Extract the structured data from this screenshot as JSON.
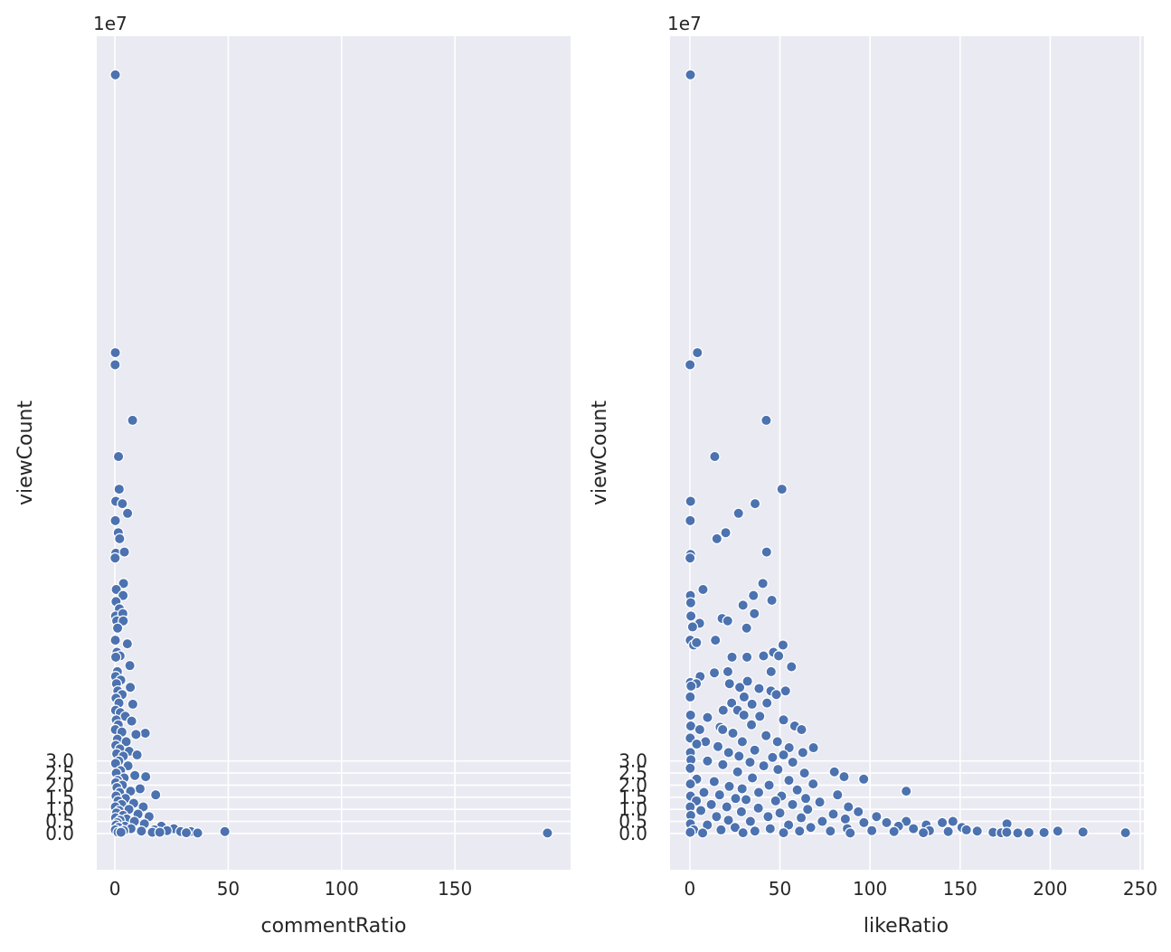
{
  "chart_data": [
    {
      "type": "scatter",
      "xlabel": "commentRatio",
      "ylabel": "viewCount",
      "y_offset_text": "1e7",
      "xlim": [
        -8,
        201
      ],
      "ylim": [
        -1.5,
        33.0
      ],
      "y_unit_scale": 10000000,
      "xticks": [
        0,
        50,
        100,
        150
      ],
      "yticks": [
        0.0,
        0.5,
        1.0,
        1.5,
        2.0,
        2.5,
        3.0
      ],
      "xtick_labels": [
        "0",
        "50",
        "100",
        "150"
      ],
      "ytick_labels": [
        "0.0",
        "0.5",
        "1.0",
        "1.5",
        "2.0",
        "2.5",
        "3.0"
      ],
      "grid": true,
      "points": [
        [
          0.2,
          31.4
        ],
        [
          0.2,
          19.9
        ],
        [
          0.1,
          19.4
        ],
        [
          7.8,
          17.1
        ],
        [
          1.6,
          15.6
        ],
        [
          1.9,
          14.25
        ],
        [
          0.4,
          13.75
        ],
        [
          3.3,
          13.65
        ],
        [
          5.6,
          13.25
        ],
        [
          0.2,
          12.95
        ],
        [
          1.5,
          12.45
        ],
        [
          2.1,
          12.2
        ],
        [
          0.4,
          11.6
        ],
        [
          4.2,
          11.65
        ],
        [
          0.1,
          11.4
        ],
        [
          3.8,
          10.35
        ],
        [
          0.6,
          10.1
        ],
        [
          3.6,
          9.85
        ],
        [
          0.5,
          9.6
        ],
        [
          2.0,
          9.3
        ],
        [
          0.3,
          9.0
        ],
        [
          3.5,
          9.1
        ],
        [
          0.8,
          8.8
        ],
        [
          3.7,
          8.8
        ],
        [
          1.2,
          8.5
        ],
        [
          0.2,
          8.0
        ],
        [
          5.5,
          7.85
        ],
        [
          0.9,
          7.5
        ],
        [
          2.3,
          7.35
        ],
        [
          0.4,
          7.3
        ],
        [
          6.6,
          6.95
        ],
        [
          1.1,
          6.7
        ],
        [
          0.3,
          6.5
        ],
        [
          2.6,
          6.35
        ],
        [
          0.7,
          6.2
        ],
        [
          6.8,
          6.05
        ],
        [
          1.3,
          5.9
        ],
        [
          3.2,
          5.75
        ],
        [
          0.5,
          5.6
        ],
        [
          1.8,
          5.4
        ],
        [
          7.9,
          5.35
        ],
        [
          0.3,
          5.1
        ],
        [
          2.4,
          5.0
        ],
        [
          4.6,
          4.85
        ],
        [
          0.6,
          4.7
        ],
        [
          7.4,
          4.65
        ],
        [
          1.5,
          4.5
        ],
        [
          0.2,
          4.3
        ],
        [
          3.1,
          4.2
        ],
        [
          13.4,
          4.15
        ],
        [
          9.3,
          4.1
        ],
        [
          1.1,
          3.9
        ],
        [
          5.0,
          3.8
        ],
        [
          0.4,
          3.65
        ],
        [
          2.2,
          3.5
        ],
        [
          6.3,
          3.4
        ],
        [
          0.8,
          3.3
        ],
        [
          9.8,
          3.25
        ],
        [
          3.7,
          3.2
        ],
        [
          1.7,
          3.0
        ],
        [
          0.3,
          2.9
        ],
        [
          5.8,
          2.8
        ],
        [
          2.5,
          2.6
        ],
        [
          0.6,
          2.5
        ],
        [
          8.8,
          2.4
        ],
        [
          13.6,
          2.35
        ],
        [
          4.1,
          2.3
        ],
        [
          1.2,
          2.2
        ],
        [
          0.4,
          2.1
        ],
        [
          3.3,
          2.0
        ],
        [
          0.9,
          1.9
        ],
        [
          11.1,
          1.85
        ],
        [
          6.9,
          1.75
        ],
        [
          2.1,
          1.7
        ],
        [
          18.0,
          1.6
        ],
        [
          0.5,
          1.55
        ],
        [
          4.7,
          1.45
        ],
        [
          1.4,
          1.35
        ],
        [
          8.3,
          1.25
        ],
        [
          3.0,
          1.2
        ],
        [
          0.2,
          1.1
        ],
        [
          12.5,
          1.1
        ],
        [
          6.2,
          1.0
        ],
        [
          1.9,
          0.95
        ],
        [
          0.7,
          0.85
        ],
        [
          10.2,
          0.8
        ],
        [
          3.6,
          0.75
        ],
        [
          15.1,
          0.7
        ],
        [
          0.3,
          0.65
        ],
        [
          5.2,
          0.6
        ],
        [
          2.3,
          0.55
        ],
        [
          8.6,
          0.5
        ],
        [
          1.1,
          0.45
        ],
        [
          13.0,
          0.4
        ],
        [
          0.5,
          0.35
        ],
        [
          4.4,
          0.3
        ],
        [
          20.5,
          0.3
        ],
        [
          1.6,
          0.25
        ],
        [
          7.1,
          0.2
        ],
        [
          0.2,
          0.15
        ],
        [
          17.4,
          0.15
        ],
        [
          26.0,
          0.2
        ],
        [
          3.9,
          0.12
        ],
        [
          11.7,
          0.1
        ],
        [
          23.0,
          0.12
        ],
        [
          29.0,
          0.08
        ],
        [
          33.5,
          0.08
        ],
        [
          36.5,
          0.02
        ],
        [
          1.4,
          0.05
        ],
        [
          2.7,
          0.05
        ],
        [
          16.5,
          0.05
        ],
        [
          19.8,
          0.05
        ],
        [
          31.5,
          0.03
        ],
        [
          48.5,
          0.08
        ],
        [
          190.8,
          0.02
        ]
      ]
    },
    {
      "type": "scatter",
      "xlabel": "likeRatio",
      "ylabel": "viewCount",
      "y_offset_text": "1e7",
      "xlim": [
        -11,
        252
      ],
      "ylim": [
        -1.5,
        33.0
      ],
      "y_unit_scale": 10000000,
      "xticks": [
        0,
        50,
        100,
        150,
        200,
        250
      ],
      "yticks": [
        0.0,
        0.5,
        1.0,
        1.5,
        2.0,
        2.5,
        3.0
      ],
      "xtick_labels": [
        "0",
        "50",
        "100",
        "150",
        "200",
        "250"
      ],
      "ytick_labels": [
        "0.0",
        "0.5",
        "1.0",
        "1.5",
        "2.0",
        "2.5",
        "3.0"
      ],
      "grid": true,
      "points": [
        [
          0.3,
          31.4
        ],
        [
          4.2,
          19.9
        ],
        [
          0.1,
          19.4
        ],
        [
          42.4,
          17.1
        ],
        [
          13.8,
          15.6
        ],
        [
          51.1,
          14.25
        ],
        [
          0.4,
          13.75
        ],
        [
          36.2,
          13.65
        ],
        [
          27.0,
          13.25
        ],
        [
          0.2,
          12.95
        ],
        [
          19.9,
          12.45
        ],
        [
          15.0,
          12.2
        ],
        [
          42.6,
          11.65
        ],
        [
          0.4,
          11.55
        ],
        [
          0.1,
          11.4
        ],
        [
          40.5,
          10.35
        ],
        [
          7.3,
          10.1
        ],
        [
          35.3,
          9.85
        ],
        [
          0.3,
          9.85
        ],
        [
          45.5,
          9.65
        ],
        [
          0.5,
          9.55
        ],
        [
          29.5,
          9.45
        ],
        [
          35.8,
          9.1
        ],
        [
          0.6,
          9.0
        ],
        [
          17.9,
          8.9
        ],
        [
          21.0,
          8.8
        ],
        [
          5.4,
          8.7
        ],
        [
          1.5,
          8.55
        ],
        [
          31.5,
          8.5
        ],
        [
          14.2,
          8.0
        ],
        [
          0.2,
          8.0
        ],
        [
          2.1,
          7.8
        ],
        [
          3.7,
          7.9
        ],
        [
          51.7,
          7.8
        ],
        [
          46.4,
          7.5
        ],
        [
          40.9,
          7.35
        ],
        [
          49.3,
          7.35
        ],
        [
          23.4,
          7.3
        ],
        [
          31.7,
          7.3
        ],
        [
          56.4,
          6.9
        ],
        [
          45.1,
          6.7
        ],
        [
          13.6,
          6.65
        ],
        [
          21.1,
          6.7
        ],
        [
          5.7,
          6.5
        ],
        [
          0.3,
          6.25
        ],
        [
          3.6,
          6.2
        ],
        [
          0.7,
          6.1
        ],
        [
          22.0,
          6.2
        ],
        [
          27.7,
          6.05
        ],
        [
          32.0,
          6.3
        ],
        [
          38.4,
          6.0
        ],
        [
          45.0,
          5.9
        ],
        [
          53.1,
          5.9
        ],
        [
          0.2,
          5.65
        ],
        [
          30.1,
          5.65
        ],
        [
          48.0,
          5.75
        ],
        [
          23.2,
          5.4
        ],
        [
          34.5,
          5.35
        ],
        [
          42.8,
          5.4
        ],
        [
          18.5,
          5.1
        ],
        [
          26.5,
          5.1
        ],
        [
          0.4,
          4.9
        ],
        [
          9.8,
          4.8
        ],
        [
          30.0,
          4.9
        ],
        [
          38.8,
          4.85
        ],
        [
          52.0,
          4.7
        ],
        [
          0.5,
          4.45
        ],
        [
          16.8,
          4.4
        ],
        [
          34.2,
          4.5
        ],
        [
          58.2,
          4.45
        ],
        [
          5.5,
          4.3
        ],
        [
          18.2,
          4.3
        ],
        [
          62.0,
          4.3
        ],
        [
          23.9,
          4.15
        ],
        [
          42.3,
          4.05
        ],
        [
          0.2,
          3.95
        ],
        [
          8.7,
          3.8
        ],
        [
          29.1,
          3.8
        ],
        [
          48.6,
          3.8
        ],
        [
          3.8,
          3.7
        ],
        [
          15.6,
          3.6
        ],
        [
          55.1,
          3.55
        ],
        [
          68.6,
          3.55
        ],
        [
          36.0,
          3.45
        ],
        [
          0.3,
          3.35
        ],
        [
          21.5,
          3.35
        ],
        [
          62.7,
          3.35
        ],
        [
          27.3,
          3.2
        ],
        [
          45.9,
          3.15
        ],
        [
          52.0,
          3.25
        ],
        [
          0.6,
          3.05
        ],
        [
          9.8,
          3.0
        ],
        [
          33.4,
          2.95
        ],
        [
          57.1,
          2.95
        ],
        [
          18.3,
          2.85
        ],
        [
          41.0,
          2.8
        ],
        [
          0.2,
          2.7
        ],
        [
          48.9,
          2.65
        ],
        [
          80.2,
          2.55
        ],
        [
          26.5,
          2.55
        ],
        [
          63.6,
          2.5
        ],
        [
          85.6,
          2.35
        ],
        [
          96.5,
          2.25
        ],
        [
          3.8,
          2.25
        ],
        [
          34.7,
          2.3
        ],
        [
          13.5,
          2.15
        ],
        [
          55.0,
          2.2
        ],
        [
          0.3,
          2.05
        ],
        [
          44.0,
          2.0
        ],
        [
          68.4,
          2.05
        ],
        [
          21.9,
          1.95
        ],
        [
          29.0,
          1.85
        ],
        [
          120.1,
          1.75
        ],
        [
          59.6,
          1.8
        ],
        [
          7.8,
          1.7
        ],
        [
          38.2,
          1.7
        ],
        [
          0.4,
          1.55
        ],
        [
          16.5,
          1.6
        ],
        [
          50.9,
          1.55
        ],
        [
          82.0,
          1.6
        ],
        [
          25.4,
          1.45
        ],
        [
          64.3,
          1.45
        ],
        [
          3.6,
          1.35
        ],
        [
          31.2,
          1.4
        ],
        [
          47.6,
          1.35
        ],
        [
          72.1,
          1.3
        ],
        [
          11.9,
          1.2
        ],
        [
          57.0,
          1.2
        ],
        [
          88.0,
          1.1
        ],
        [
          20.5,
          1.1
        ],
        [
          0.2,
          1.1
        ],
        [
          38.0,
          1.05
        ],
        [
          65.4,
          1.0
        ],
        [
          93.5,
          0.9
        ],
        [
          6.1,
          0.95
        ],
        [
          28.6,
          0.9
        ],
        [
          50.0,
          0.85
        ],
        [
          79.6,
          0.8
        ],
        [
          103.6,
          0.7
        ],
        [
          0.5,
          0.75
        ],
        [
          14.8,
          0.7
        ],
        [
          43.4,
          0.7
        ],
        [
          61.8,
          0.65
        ],
        [
          86.3,
          0.6
        ],
        [
          109.2,
          0.45
        ],
        [
          120.1,
          0.5
        ],
        [
          21.4,
          0.55
        ],
        [
          33.6,
          0.5
        ],
        [
          73.5,
          0.5
        ],
        [
          96.6,
          0.45
        ],
        [
          131.2,
          0.35
        ],
        [
          146.0,
          0.5
        ],
        [
          140.1,
          0.45
        ],
        [
          176.0,
          0.4
        ],
        [
          0.3,
          0.4
        ],
        [
          9.7,
          0.35
        ],
        [
          54.8,
          0.35
        ],
        [
          115.8,
          0.3
        ],
        [
          151.0,
          0.25
        ],
        [
          25.1,
          0.25
        ],
        [
          67.1,
          0.25
        ],
        [
          87.4,
          0.2
        ],
        [
          124.1,
          0.2
        ],
        [
          153.5,
          0.15
        ],
        [
          44.6,
          0.2
        ],
        [
          2.1,
          0.15
        ],
        [
          17.3,
          0.15
        ],
        [
          101.0,
          0.12
        ],
        [
          133.0,
          0.12
        ],
        [
          159.5,
          0.1
        ],
        [
          36.1,
          0.1
        ],
        [
          60.9,
          0.1
        ],
        [
          78.0,
          0.1
        ],
        [
          113.3,
          0.08
        ],
        [
          143.4,
          0.08
        ],
        [
          168.3,
          0.05
        ],
        [
          172.8,
          0.03
        ],
        [
          175.9,
          0.05
        ],
        [
          182.0,
          0.02
        ],
        [
          188.2,
          0.04
        ],
        [
          196.6,
          0.04
        ],
        [
          204.2,
          0.1
        ],
        [
          218.2,
          0.06
        ],
        [
          241.8,
          0.03
        ],
        [
          0.2,
          0.05
        ],
        [
          7.1,
          0.02
        ],
        [
          29.5,
          0.03
        ],
        [
          52.0,
          0.03
        ],
        [
          89.0,
          0.02
        ],
        [
          129.6,
          0.03
        ]
      ]
    }
  ]
}
